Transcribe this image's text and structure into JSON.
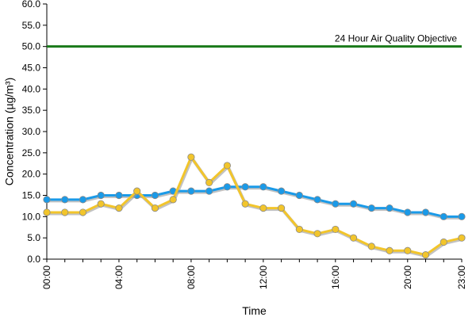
{
  "chart_data": {
    "type": "line",
    "title": "",
    "xlabel": "Time",
    "ylabel": "Concentration (µg/m³)",
    "ylim": [
      0,
      60
    ],
    "y_ticks": [
      "0.0",
      "5.0",
      "10.0",
      "15.0",
      "20.0",
      "25.0",
      "30.0",
      "35.0",
      "40.0",
      "45.0",
      "50.0",
      "55.0",
      "60.0"
    ],
    "x_tick_labels": [
      "00:00",
      "04:00",
      "08:00",
      "12:00",
      "16:00",
      "20:00",
      "23:00"
    ],
    "x_tick_hours": [
      0,
      4,
      8,
      12,
      16,
      20,
      23
    ],
    "x": [
      0,
      1,
      2,
      3,
      4,
      5,
      6,
      7,
      8,
      9,
      10,
      11,
      12,
      13,
      14,
      15,
      16,
      17,
      18,
      19,
      20,
      21,
      22,
      23
    ],
    "grid": false,
    "series": [
      {
        "color": "#1a9ae8",
        "values": [
          14,
          14,
          14,
          15,
          15,
          15,
          15,
          16,
          16,
          16,
          17,
          17,
          17,
          16,
          15,
          14,
          13,
          13,
          12,
          12,
          11,
          11,
          10,
          10
        ]
      },
      {
        "color": "#f2c52b",
        "values": [
          11,
          11,
          11,
          13,
          12,
          16,
          12,
          14,
          24,
          18,
          22,
          13,
          12,
          12,
          7,
          6,
          7,
          5,
          3,
          2,
          2,
          1,
          4,
          5
        ]
      }
    ],
    "threshold": {
      "value": 50,
      "label": "24 Hour Air Quality Objective",
      "color": "#1a7a1a"
    }
  }
}
